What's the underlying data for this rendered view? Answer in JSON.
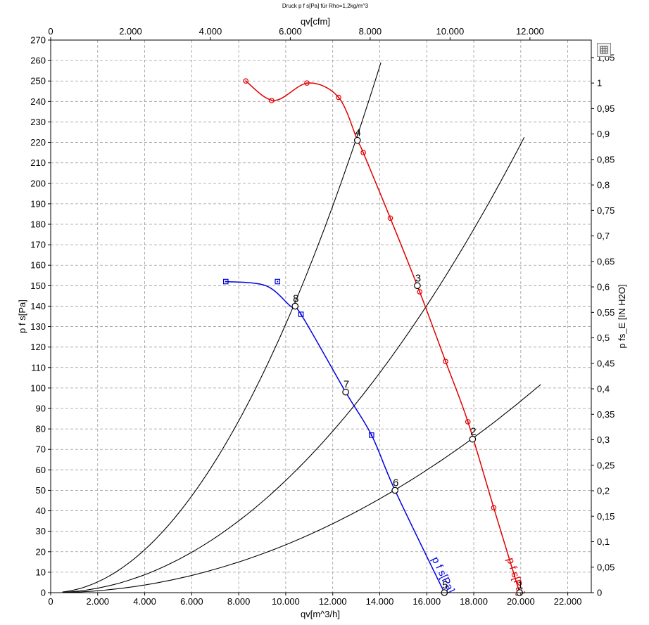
{
  "chart_data": {
    "type": "line",
    "title": "Druck p f s[Pa] für Rho=1,2kg/m^3",
    "xlabel": "qv[m^3/h]",
    "x2label": "qv[cfm]",
    "ylabel": "p f s[Pa]",
    "y2label": "p fs_E [IN H2O]",
    "xlim": [
      0,
      23000
    ],
    "x2lim": [
      0,
      13536
    ],
    "ylim": [
      0,
      270
    ],
    "y2lim": [
      0,
      1.0843
    ],
    "grid": true,
    "x_ticks": [
      {
        "v": 0,
        "t": "0"
      },
      {
        "v": 2000,
        "t": "2.000"
      },
      {
        "v": 4000,
        "t": "4.000"
      },
      {
        "v": 6000,
        "t": "6.000"
      },
      {
        "v": 8000,
        "t": "8.000"
      },
      {
        "v": 10000,
        "t": "10.000"
      },
      {
        "v": 12000,
        "t": "12.000"
      },
      {
        "v": 14000,
        "t": "14.000"
      },
      {
        "v": 16000,
        "t": "16.000"
      },
      {
        "v": 18000,
        "t": "18.000"
      },
      {
        "v": 20000,
        "t": "20.000"
      },
      {
        "v": 22000,
        "t": "22.000"
      }
    ],
    "x2_ticks": [
      {
        "v": 0,
        "t": "0"
      },
      {
        "v": 2000,
        "t": "2.000"
      },
      {
        "v": 4000,
        "t": "4.000"
      },
      {
        "v": 6000,
        "t": "6.000"
      },
      {
        "v": 8000,
        "t": "8.000"
      },
      {
        "v": 10000,
        "t": "10.000"
      },
      {
        "v": 12000,
        "t": "12.000"
      }
    ],
    "y_ticks": [
      {
        "v": 0,
        "t": "0"
      },
      {
        "v": 10,
        "t": "10"
      },
      {
        "v": 20,
        "t": "20"
      },
      {
        "v": 30,
        "t": "30"
      },
      {
        "v": 40,
        "t": "40"
      },
      {
        "v": 50,
        "t": "50"
      },
      {
        "v": 60,
        "t": "60"
      },
      {
        "v": 70,
        "t": "70"
      },
      {
        "v": 80,
        "t": "80"
      },
      {
        "v": 90,
        "t": "90"
      },
      {
        "v": 100,
        "t": "100"
      },
      {
        "v": 110,
        "t": "110"
      },
      {
        "v": 120,
        "t": "120"
      },
      {
        "v": 130,
        "t": "130"
      },
      {
        "v": 140,
        "t": "140"
      },
      {
        "v": 150,
        "t": "150"
      },
      {
        "v": 160,
        "t": "160"
      },
      {
        "v": 170,
        "t": "170"
      },
      {
        "v": 180,
        "t": "180"
      },
      {
        "v": 190,
        "t": "190"
      },
      {
        "v": 200,
        "t": "200"
      },
      {
        "v": 210,
        "t": "210"
      },
      {
        "v": 220,
        "t": "220"
      },
      {
        "v": 230,
        "t": "230"
      },
      {
        "v": 240,
        "t": "240"
      },
      {
        "v": 250,
        "t": "250"
      },
      {
        "v": 260,
        "t": "260"
      },
      {
        "v": 270,
        "t": "270"
      }
    ],
    "y2_ticks": [
      {
        "v": 0,
        "t": "0"
      },
      {
        "v": 0.05,
        "t": "0,05"
      },
      {
        "v": 0.1,
        "t": "0,1"
      },
      {
        "v": 0.15,
        "t": "0,15"
      },
      {
        "v": 0.2,
        "t": "0,2"
      },
      {
        "v": 0.25,
        "t": "0,25"
      },
      {
        "v": 0.3,
        "t": "0,3"
      },
      {
        "v": 0.35,
        "t": "0,35"
      },
      {
        "v": 0.4,
        "t": "0,4"
      },
      {
        "v": 0.45,
        "t": "0,45"
      },
      {
        "v": 0.5,
        "t": "0,5"
      },
      {
        "v": 0.55,
        "t": "0,55"
      },
      {
        "v": 0.6,
        "t": "0,6"
      },
      {
        "v": 0.65,
        "t": "0,65"
      },
      {
        "v": 0.7,
        "t": "0,7"
      },
      {
        "v": 0.75,
        "t": "0,75"
      },
      {
        "v": 0.8,
        "t": "0,8"
      },
      {
        "v": 0.85,
        "t": "0,85"
      },
      {
        "v": 0.9,
        "t": "0,9"
      },
      {
        "v": 0.95,
        "t": "0,95"
      },
      {
        "v": 1.0,
        "t": "1"
      },
      {
        "v": 1.05,
        "t": "1,05"
      }
    ],
    "series": [
      {
        "name": "p f s[Pa]",
        "label_text": "p f s[Pa]",
        "color": "#e00000",
        "marker": "circle",
        "x": [
          8300,
          9500,
          10950,
          12250,
          13050,
          13300,
          14450,
          15700,
          16800,
          17750,
          18850,
          19950
        ],
        "y": [
          250,
          240.5,
          249,
          242,
          221,
          215,
          183,
          147,
          113,
          83.5,
          41.5,
          0
        ],
        "markers_x": [
          8300,
          9400,
          10900,
          12250,
          13300,
          14450,
          15700,
          16800,
          17750,
          18850
        ],
        "markers_y": [
          250,
          240.5,
          249,
          242,
          215,
          183,
          147,
          113,
          83.5,
          41.5
        ]
      },
      {
        "name": "p f s[Pa]",
        "label_text": "p f s[Pa]",
        "color": "#0000e0",
        "marker": "square",
        "x": [
          7450,
          9150,
          10200,
          10650,
          12550,
          13650,
          14650,
          16750
        ],
        "y": [
          152,
          150,
          140,
          136,
          98,
          77,
          50,
          0
        ],
        "markers_x": [
          7450,
          9650,
          10650,
          13650
        ],
        "markers_y": [
          152,
          152,
          136,
          77
        ]
      }
    ],
    "system_curves": [
      {
        "name": "curve-1",
        "color": "#000000",
        "k": 1.312e-06,
        "x_max": 14050
      },
      {
        "name": "curve-2",
        "color": "#000000",
        "k": 5.48e-07,
        "x_max": 20150
      },
      {
        "name": "curve-3",
        "color": "#000000",
        "k": 2.34e-07,
        "x_max": 20850
      }
    ],
    "operating_points": [
      {
        "id": "1",
        "x": 19950,
        "y": 0
      },
      {
        "id": "2",
        "x": 17950,
        "y": 75
      },
      {
        "id": "3",
        "x": 15600,
        "y": 150
      },
      {
        "id": "4",
        "x": 13050,
        "y": 221
      },
      {
        "id": "5",
        "x": 16750,
        "y": 0
      },
      {
        "id": "6",
        "x": 14650,
        "y": 50
      },
      {
        "id": "7",
        "x": 12550,
        "y": 98
      },
      {
        "id": "8",
        "x": 10400,
        "y": 140
      }
    ]
  }
}
